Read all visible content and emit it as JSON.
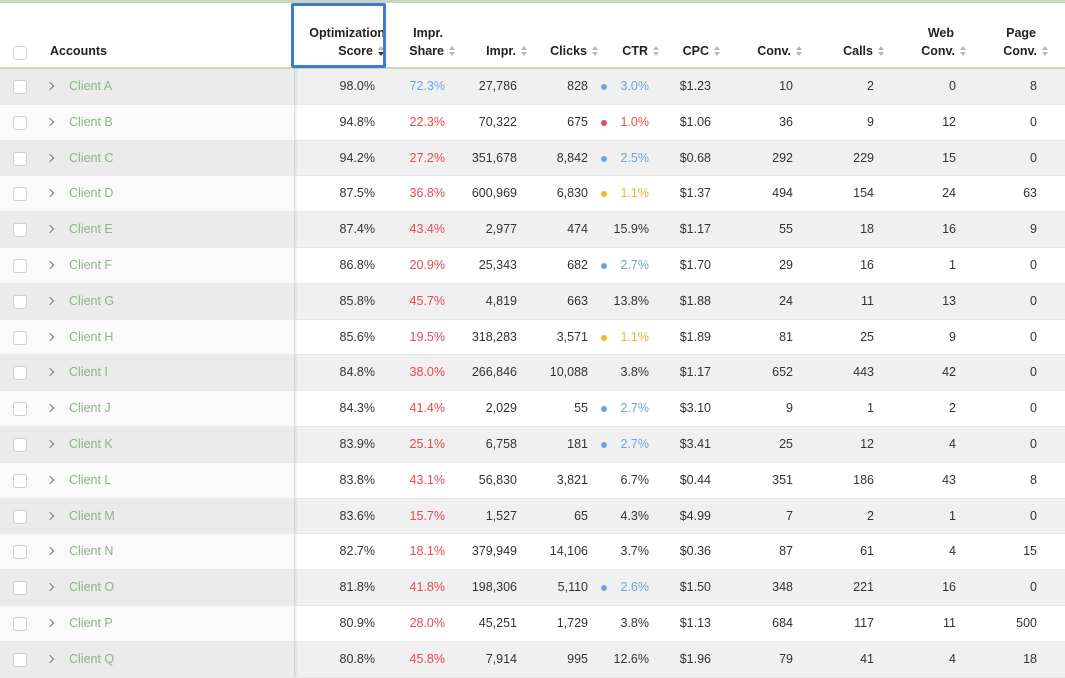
{
  "header": {
    "accounts": "Accounts",
    "opt_score_line1": "Optimization",
    "opt_score_line2": "Score",
    "impr_share_line1": "Impr.",
    "impr_share_line2": "Share",
    "impr": "Impr.",
    "clicks": "Clicks",
    "ctr": "CTR",
    "cpc": "CPC",
    "conv": "Conv.",
    "calls": "Calls",
    "web_conv_line1": "Web",
    "web_conv_line2": "Conv.",
    "page_conv_line1": "Page",
    "page_conv_line2": "Conv."
  },
  "colors": {
    "red": "#e8494d",
    "blue": "#6ba4e0",
    "yellow": "#f2b52b",
    "account_green": "#8fb38a",
    "highlight": "#3a7bd5"
  },
  "rows": [
    {
      "account": "Client A",
      "opt": "98.0%",
      "share": "72.3%",
      "share_color": "blue",
      "impr": "27,786",
      "clicks": "828",
      "ctr": "3.0%",
      "ctr_dot": "blue",
      "cpc": "$1.23",
      "conv": "10",
      "calls": "2",
      "web": "0",
      "page": "8"
    },
    {
      "account": "Client B",
      "opt": "94.8%",
      "share": "22.3%",
      "share_color": "red",
      "impr": "70,322",
      "clicks": "675",
      "ctr": "1.0%",
      "ctr_dot": "red",
      "cpc": "$1.06",
      "conv": "36",
      "calls": "9",
      "web": "12",
      "page": "0"
    },
    {
      "account": "Client C",
      "opt": "94.2%",
      "share": "27.2%",
      "share_color": "red",
      "impr": "351,678",
      "clicks": "8,842",
      "ctr": "2.5%",
      "ctr_dot": "blue",
      "cpc": "$0.68",
      "conv": "292",
      "calls": "229",
      "web": "15",
      "page": "0"
    },
    {
      "account": "Client D",
      "opt": "87.5%",
      "share": "36.8%",
      "share_color": "red",
      "impr": "600,969",
      "clicks": "6,830",
      "ctr": "1.1%",
      "ctr_dot": "yellow",
      "cpc": "$1.37",
      "conv": "494",
      "calls": "154",
      "web": "24",
      "page": "63"
    },
    {
      "account": "Client E",
      "opt": "87.4%",
      "share": "43.4%",
      "share_color": "red",
      "impr": "2,977",
      "clicks": "474",
      "ctr": "15.9%",
      "ctr_dot": "",
      "cpc": "$1.17",
      "conv": "55",
      "calls": "18",
      "web": "16",
      "page": "9"
    },
    {
      "account": "Client F",
      "opt": "86.8%",
      "share": "20.9%",
      "share_color": "red",
      "impr": "25,343",
      "clicks": "682",
      "ctr": "2.7%",
      "ctr_dot": "blue",
      "cpc": "$1.70",
      "conv": "29",
      "calls": "16",
      "web": "1",
      "page": "0"
    },
    {
      "account": "Client G",
      "opt": "85.8%",
      "share": "45.7%",
      "share_color": "red",
      "impr": "4,819",
      "clicks": "663",
      "ctr": "13.8%",
      "ctr_dot": "",
      "cpc": "$1.88",
      "conv": "24",
      "calls": "11",
      "web": "13",
      "page": "0"
    },
    {
      "account": "Client H",
      "opt": "85.6%",
      "share": "19.5%",
      "share_color": "red",
      "impr": "318,283",
      "clicks": "3,571",
      "ctr": "1.1%",
      "ctr_dot": "yellow",
      "cpc": "$1.89",
      "conv": "81",
      "calls": "25",
      "web": "9",
      "page": "0"
    },
    {
      "account": "Client I",
      "opt": "84.8%",
      "share": "38.0%",
      "share_color": "red",
      "impr": "266,846",
      "clicks": "10,088",
      "ctr": "3.8%",
      "ctr_dot": "",
      "cpc": "$1.17",
      "conv": "652",
      "calls": "443",
      "web": "42",
      "page": "0"
    },
    {
      "account": "Client J",
      "opt": "84.3%",
      "share": "41.4%",
      "share_color": "red",
      "impr": "2,029",
      "clicks": "55",
      "ctr": "2.7%",
      "ctr_dot": "blue",
      "cpc": "$3.10",
      "conv": "9",
      "calls": "1",
      "web": "2",
      "page": "0"
    },
    {
      "account": "Client K",
      "opt": "83.9%",
      "share": "25.1%",
      "share_color": "red",
      "impr": "6,758",
      "clicks": "181",
      "ctr": "2.7%",
      "ctr_dot": "blue",
      "cpc": "$3.41",
      "conv": "25",
      "calls": "12",
      "web": "4",
      "page": "0"
    },
    {
      "account": "Client L",
      "opt": "83.8%",
      "share": "43.1%",
      "share_color": "red",
      "impr": "56,830",
      "clicks": "3,821",
      "ctr": "6.7%",
      "ctr_dot": "",
      "cpc": "$0.44",
      "conv": "351",
      "calls": "186",
      "web": "43",
      "page": "8"
    },
    {
      "account": "Client M",
      "opt": "83.6%",
      "share": "15.7%",
      "share_color": "red",
      "impr": "1,527",
      "clicks": "65",
      "ctr": "4.3%",
      "ctr_dot": "",
      "cpc": "$4.99",
      "conv": "7",
      "calls": "2",
      "web": "1",
      "page": "0"
    },
    {
      "account": "Client N",
      "opt": "82.7%",
      "share": "18.1%",
      "share_color": "red",
      "impr": "379,949",
      "clicks": "14,106",
      "ctr": "3.7%",
      "ctr_dot": "",
      "cpc": "$0.36",
      "conv": "87",
      "calls": "61",
      "web": "4",
      "page": "15"
    },
    {
      "account": "Client O",
      "opt": "81.8%",
      "share": "41.8%",
      "share_color": "red",
      "impr": "198,306",
      "clicks": "5,110",
      "ctr": "2.6%",
      "ctr_dot": "blue",
      "cpc": "$1.50",
      "conv": "348",
      "calls": "221",
      "web": "16",
      "page": "0"
    },
    {
      "account": "Client P",
      "opt": "80.9%",
      "share": "28.0%",
      "share_color": "red",
      "impr": "45,251",
      "clicks": "1,729",
      "ctr": "3.8%",
      "ctr_dot": "",
      "cpc": "$1.13",
      "conv": "684",
      "calls": "117",
      "web": "11",
      "page": "500"
    },
    {
      "account": "Client Q",
      "opt": "80.8%",
      "share": "45.8%",
      "share_color": "red",
      "impr": "7,914",
      "clicks": "995",
      "ctr": "12.6%",
      "ctr_dot": "",
      "cpc": "$1.96",
      "conv": "79",
      "calls": "41",
      "web": "4",
      "page": "18"
    }
  ]
}
